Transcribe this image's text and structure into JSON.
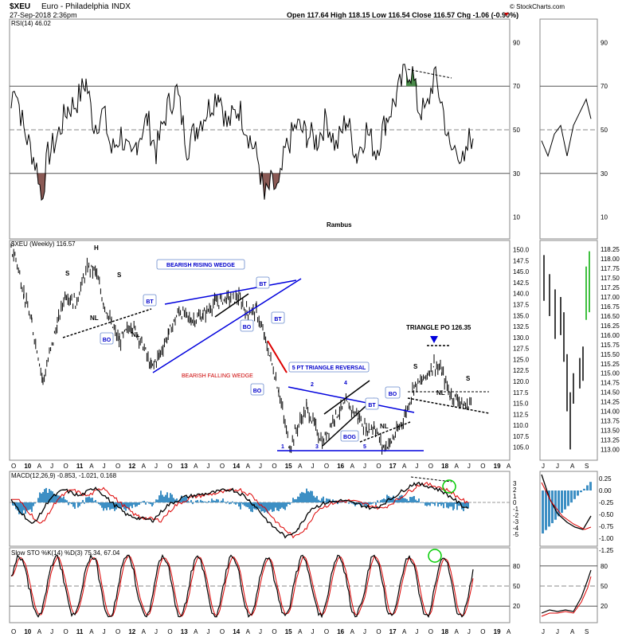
{
  "header": {
    "symbol": "$XEU",
    "name": "Euro - Philadelphia",
    "exchange": "INDX",
    "date": "27-Sep-2018 2:36pm",
    "ohlc": "Open 117.64  High 118.15  Low 116.54  Close 116.57  Chg -1.06 (-0.90%)",
    "credit": "© StockCharts.com"
  },
  "colors": {
    "price": "#000000",
    "rsi_fill": "#8b5a55",
    "rsi_fill_high": "#4a8b4a",
    "macd_hist": "#3d8fc4",
    "signal": "#dd0000",
    "annotation_blue": "#0000dd",
    "annotation_red": "#dd0000",
    "highlight": "#00cc00"
  },
  "chart_data": [
    {
      "type": "line",
      "title": "RSI(14) 46.02",
      "ylim": [
        0,
        100
      ],
      "yticks": [
        "90",
        "70",
        "50",
        "30",
        "10"
      ],
      "weekly_side_yticks": [
        "90",
        "70",
        "50",
        "30",
        "10"
      ],
      "watermark": "Rambus",
      "grid": true,
      "values_start": 46
    },
    {
      "type": "line",
      "title": "$XEU (Weekly) 116.57",
      "ylim": [
        103.5,
        151
      ],
      "yticks": [
        "150.0",
        "147.5",
        "145.0",
        "142.5",
        "140.0",
        "137.5",
        "135.0",
        "132.5",
        "130.0",
        "127.5",
        "125.0",
        "122.5",
        "120.0",
        "117.5",
        "115.0",
        "112.5",
        "110.0",
        "107.5",
        "105.0"
      ],
      "daily_yticks": [
        "118.25",
        "118.00",
        "117.75",
        "117.50",
        "117.25",
        "117.00",
        "116.75",
        "116.50",
        "116.25",
        "116.00",
        "115.75",
        "115.50",
        "115.25",
        "115.00",
        "114.75",
        "114.50",
        "114.25",
        "114.00",
        "113.75",
        "113.50",
        "113.25",
        "113.00"
      ],
      "x_labels": [
        "O",
        "10",
        "A",
        "J",
        "O",
        "11",
        "A",
        "J",
        "O",
        "12",
        "A",
        "J",
        "O",
        "13",
        "A",
        "J",
        "O",
        "14",
        "A",
        "J",
        "O",
        "15",
        "A",
        "J",
        "O",
        "16",
        "A",
        "J",
        "O",
        "17",
        "A",
        "J",
        "O",
        "18",
        "A",
        "J",
        "O",
        "19",
        "A"
      ],
      "right_x_labels": [
        "J",
        "J",
        "A",
        "S"
      ],
      "annotations": {
        "wedge": "BEARISH RISING WEDGE",
        "falling": "BEARISH FALLING WEDGE",
        "triangle": "5 PT TRIANGLE REVERSAL",
        "po": "TRIANGLE PO 126.35",
        "bo": "BO",
        "bt": "BT",
        "bog": "BOG",
        "nl": "NL",
        "s": "S",
        "h": "H",
        "p1": "1",
        "p2": "2",
        "p3": "3",
        "p4": "4",
        "p5": "5"
      }
    },
    {
      "type": "line",
      "title": "MACD(12,26,9) -0.853, -1.021, 0.168",
      "yticks": [
        "3",
        "2",
        "1",
        "0",
        "-1",
        "-2",
        "-3",
        "-4",
        "-5"
      ],
      "side_yticks": [
        "0.25",
        "0.00",
        "-0.25",
        "-0.50",
        "-0.75",
        "-1.00",
        "-1.25"
      ]
    },
    {
      "type": "line",
      "title": "Slow STO %K(14) %D(3) 75.34, 67.04",
      "yticks": [
        "80",
        "50",
        "20"
      ],
      "side_yticks": [
        "80",
        "50",
        "20"
      ]
    }
  ]
}
